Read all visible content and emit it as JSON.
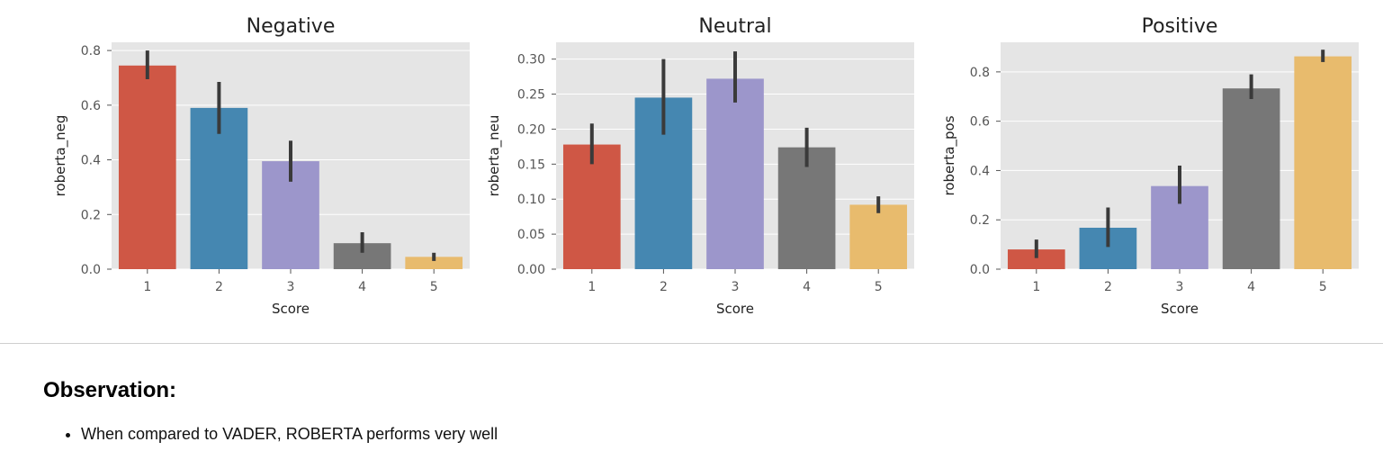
{
  "chart_data": [
    {
      "type": "bar",
      "title": "Negative",
      "xlabel": "Score",
      "ylabel": "roberta_neg",
      "categories": [
        "1",
        "2",
        "3",
        "4",
        "5"
      ],
      "values": [
        0.745,
        0.59,
        0.395,
        0.095,
        0.045
      ],
      "error_low": [
        0.695,
        0.495,
        0.32,
        0.06,
        0.03
      ],
      "error_high": [
        0.8,
        0.685,
        0.47,
        0.135,
        0.06
      ],
      "yticks": [
        "0.0",
        "0.2",
        "0.4",
        "0.6",
        "0.8"
      ],
      "ytick_values": [
        0,
        0.2,
        0.4,
        0.6,
        0.8
      ],
      "ylim": [
        0,
        0.83
      ],
      "grid": true
    },
    {
      "type": "bar",
      "title": "Neutral",
      "xlabel": "Score",
      "ylabel": "roberta_neu",
      "categories": [
        "1",
        "2",
        "3",
        "4",
        "5"
      ],
      "values": [
        0.178,
        0.245,
        0.272,
        0.174,
        0.092
      ],
      "error_low": [
        0.15,
        0.192,
        0.238,
        0.146,
        0.08
      ],
      "error_high": [
        0.208,
        0.3,
        0.311,
        0.202,
        0.104
      ],
      "yticks": [
        "0.00",
        "0.05",
        "0.10",
        "0.15",
        "0.20",
        "0.25",
        "0.30"
      ],
      "ytick_values": [
        0,
        0.05,
        0.1,
        0.15,
        0.2,
        0.25,
        0.3
      ],
      "ylim": [
        0,
        0.324
      ],
      "grid": true
    },
    {
      "type": "bar",
      "title": "Positive",
      "xlabel": "Score",
      "ylabel": "roberta_pos",
      "categories": [
        "1",
        "2",
        "3",
        "4",
        "5"
      ],
      "values": [
        0.08,
        0.168,
        0.337,
        0.733,
        0.863
      ],
      "error_low": [
        0.045,
        0.09,
        0.265,
        0.69,
        0.84
      ],
      "error_high": [
        0.12,
        0.25,
        0.42,
        0.79,
        0.89
      ],
      "yticks": [
        "0.0",
        "0.2",
        "0.4",
        "0.6",
        "0.8"
      ],
      "ytick_values": [
        0,
        0.2,
        0.4,
        0.6,
        0.8
      ],
      "ylim": [
        0,
        0.92
      ],
      "grid": true
    }
  ],
  "colors": {
    "bars": [
      "#cf5745",
      "#4587b1",
      "#9c96cb",
      "#777777",
      "#e8bb6d"
    ],
    "plot_background": "#e5e5e5",
    "grid": "#ffffff",
    "error_bar": "#3a3a3a"
  },
  "observation": {
    "heading": "Observation:",
    "items": [
      "When compared to VADER, ROBERTA performs very well"
    ]
  }
}
